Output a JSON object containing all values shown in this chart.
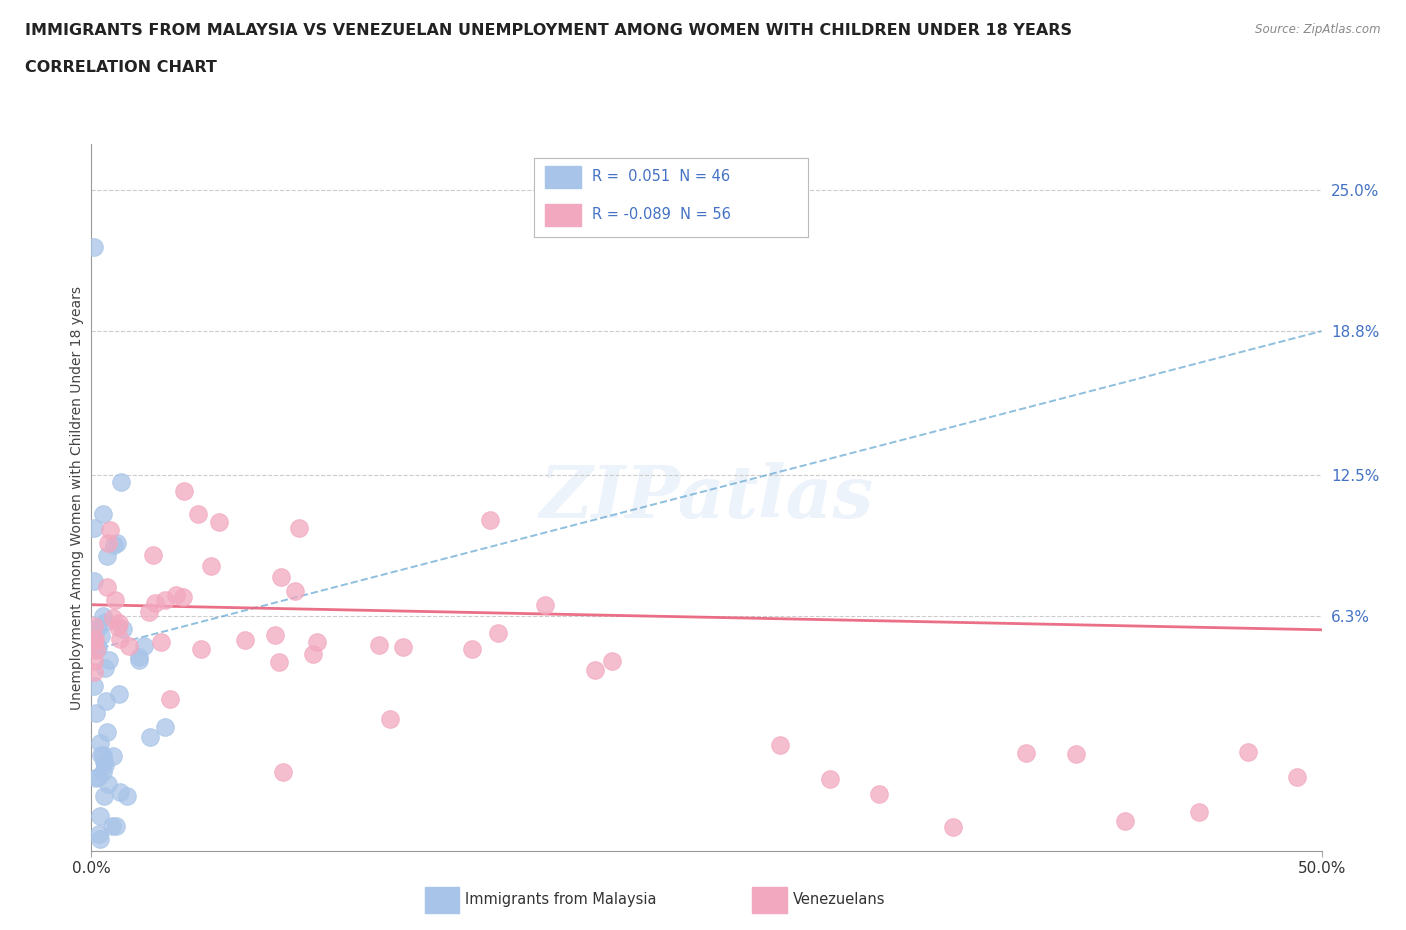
{
  "title_line1": "IMMIGRANTS FROM MALAYSIA VS VENEZUELAN UNEMPLOYMENT AMONG WOMEN WITH CHILDREN UNDER 18 YEARS",
  "title_line2": "CORRELATION CHART",
  "source": "Source: ZipAtlas.com",
  "ylabel": "Unemployment Among Women with Children Under 18 years",
  "xlim": [
    0.0,
    0.5
  ],
  "ylim": [
    -0.04,
    0.27
  ],
  "ytick_values": [
    0.063,
    0.125,
    0.188,
    0.25
  ],
  "ytick_labels": [
    "6.3%",
    "12.5%",
    "18.8%",
    "25.0%"
  ],
  "xtick_values": [
    0.0,
    0.5
  ],
  "xtick_labels": [
    "0.0%",
    "50.0%"
  ],
  "r_malaysia": 0.051,
  "n_malaysia": 46,
  "r_venezuela": -0.089,
  "n_venezuela": 56,
  "color_malaysia": "#a8c4e8",
  "color_venezuela": "#f2a8bf",
  "trend_malaysia_color": "#6aaad4",
  "trend_venezuela_color": "#e8607a",
  "watermark": "ZIPatlas",
  "background_color": "#ffffff",
  "legend_text_color": "#4472c4",
  "title_color": "#222222",
  "source_color": "#888888",
  "axis_label_color": "#444444",
  "grid_color": "#cccccc",
  "right_tick_color": "#4472c4",
  "mal_trend_x": [
    0.0,
    0.5
  ],
  "mal_trend_y": [
    0.048,
    0.188
  ],
  "ven_trend_x": [
    0.0,
    0.5
  ],
  "ven_trend_y": [
    0.068,
    0.057
  ]
}
